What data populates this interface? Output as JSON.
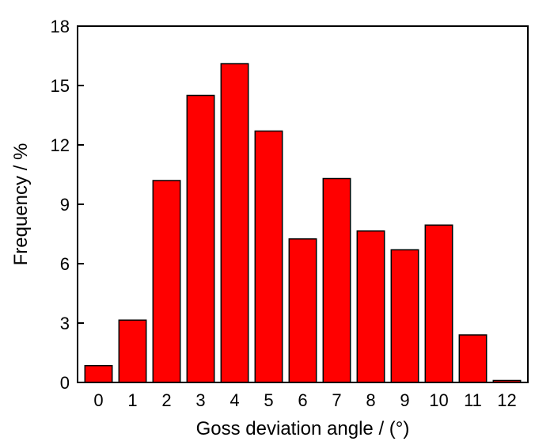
{
  "chart_data": {
    "type": "bar",
    "title": "",
    "xlabel": "Goss deviation angle / (°)",
    "ylabel": "Frequency / %",
    "categories": [
      "0",
      "1",
      "2",
      "3",
      "4",
      "5",
      "6",
      "7",
      "8",
      "9",
      "10",
      "11",
      "12"
    ],
    "values": [
      0.85,
      3.15,
      10.2,
      14.5,
      16.1,
      12.7,
      7.25,
      10.3,
      7.65,
      6.7,
      7.95,
      2.4,
      0.1
    ],
    "ylim": [
      0,
      18
    ],
    "yticks": [
      "0",
      "3",
      "6",
      "9",
      "12",
      "15",
      "18"
    ],
    "grid": false,
    "bar_color": "#ff0000",
    "bar_edge_color": "#000000"
  }
}
